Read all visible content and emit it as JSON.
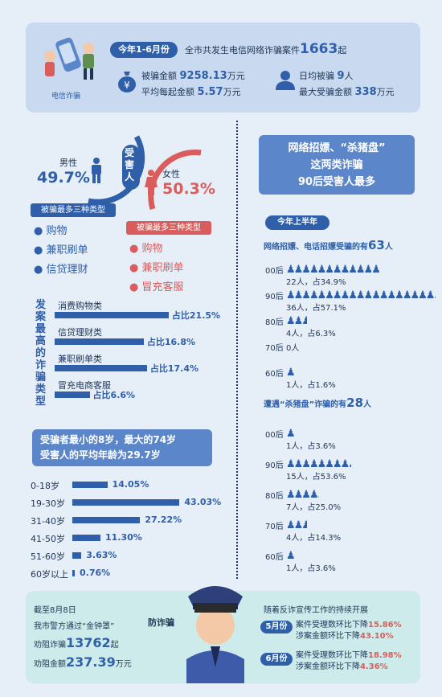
{
  "header": {
    "badge": "今年1-6月份",
    "line1_pre": "全市共发生电信网络诈骗案件",
    "line1_num": "1663",
    "line1_unit": "起",
    "logo_text": "电信诈骗",
    "amount_label": "被骗金额",
    "amount_value": "9258.13",
    "amount_unit": "万元",
    "avg_label": "平均每起金额",
    "avg_value": "5.57",
    "avg_unit": "万元",
    "daily_label": "日均被骗",
    "daily_value": "9",
    "daily_unit": "人",
    "max_label": "最大受骗金额",
    "max_value": "338",
    "max_unit": "万元",
    "yen": "¥"
  },
  "gender": {
    "center": "受害人",
    "male_label": "男性",
    "male_pct": "49.7%",
    "female_label": "女性",
    "female_pct": "50.3%",
    "male_types_title": "被骗最多三种类型",
    "male_types": [
      "购物",
      "兼职刷单",
      "信贷理财"
    ],
    "female_types_title": "被骗最多三种类型",
    "female_types": [
      "购物",
      "兼职刷单",
      "冒充客服"
    ]
  },
  "fraud_types": {
    "title": "发案最高的诈骗类型",
    "items": [
      {
        "name": "消费购物类",
        "pct_text": "占比21.5%",
        "value": 21.5
      },
      {
        "name": "信贷理财类",
        "pct_text": "占比16.8%",
        "value": 16.8
      },
      {
        "name": "兼职刷单类",
        "pct_text": "占比17.4%",
        "value": 17.4
      },
      {
        "name": "冒充电商客服",
        "pct_text": "占比6.6%",
        "value": 6.6
      }
    ]
  },
  "age": {
    "banner_line1": "受骗者最小的8岁，最大的74岁",
    "banner_line2": "受害人的平均年龄为29.7岁",
    "items": [
      {
        "label": "0-18岁",
        "pct": "14.05%",
        "value": 14.05
      },
      {
        "label": "19-30岁",
        "pct": "43.03%",
        "value": 43.03
      },
      {
        "label": "31-40岁",
        "pct": "27.22%",
        "value": 27.22
      },
      {
        "label": "41-50岁",
        "pct": "11.30%",
        "value": 11.3
      },
      {
        "label": "51-60岁",
        "pct": "3.63%",
        "value": 3.63
      },
      {
        "label": "60岁以上",
        "pct": "0.76%",
        "value": 0.76
      }
    ]
  },
  "right": {
    "box_line1": "网络招嫖、“杀猪盘”",
    "box_line2": "这两类诈骗",
    "box_line3": "90后受害人最多",
    "pill": "今年上半年",
    "rec_title_pre": "网络招嫖、电话招嫖受骗的有",
    "rec_title_num": "63",
    "rec_title_unit": "人",
    "rec": [
      {
        "label": "00后",
        "count": 22,
        "text": "22人，占34.9%"
      },
      {
        "label": "90后",
        "count": 36,
        "text": "36人，占57.1%"
      },
      {
        "label": "80后",
        "count": 4,
        "text": "4人，占6.3%"
      },
      {
        "label": "70后",
        "count": 0,
        "text": "0人"
      },
      {
        "label": "60后",
        "count": 1,
        "text": "1人，占1.6%"
      }
    ],
    "pig_title_pre": "遭遇“杀猪盘”诈骗的有",
    "pig_title_num": "28",
    "pig_title_unit": "人",
    "pig": [
      {
        "label": "00后",
        "count": 1,
        "text": "1人，占3.6%"
      },
      {
        "label": "90后",
        "count": 15,
        "text": "15人，占53.6%"
      },
      {
        "label": "80后",
        "count": 7,
        "text": "7人，占25.0%"
      },
      {
        "label": "70后",
        "count": 4,
        "text": "4人，占14.3%"
      },
      {
        "label": "60后",
        "count": 1,
        "text": "1人，占3.6%"
      }
    ]
  },
  "bottom": {
    "line1": "截至8月8日",
    "line2": "我市警方通过“金钟罩”",
    "line3_label": "劝阻诈骗",
    "line3_num": "13762",
    "line3_unit": "起",
    "line4_label": "劝阻金额",
    "line4_num": "237.39",
    "line4_unit": "万元",
    "anti": "防诈骗",
    "right_title": "随着反诈宣传工作的持续开展",
    "may_badge": "5月份",
    "may_l1_pre": "案件受理数环比下降",
    "may_l1_val": "15.86%",
    "may_l2_pre": "涉案金额环比下降",
    "may_l2_val": "43.10%",
    "jun_badge": "6月份",
    "jun_l1_pre": "案件受理数环比下降",
    "jun_l1_val": "18.98%",
    "jun_l2_pre": "涉案金额环比下降",
    "jun_l2_val": "4.36%"
  },
  "colors": {
    "blue": "#2e5fa8",
    "red": "#d95d5d",
    "mint": "#cdebea"
  }
}
